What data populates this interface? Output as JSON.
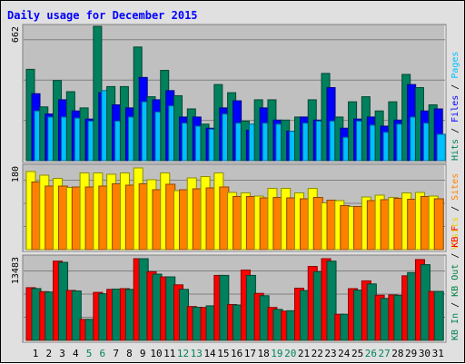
{
  "chart_data": {
    "type": "bar",
    "title": "Daily usage for December 2015",
    "categories": [
      "1",
      "2",
      "3",
      "4",
      "5",
      "6",
      "7",
      "8",
      "9",
      "10",
      "11",
      "12",
      "13",
      "14",
      "15",
      "16",
      "17",
      "18",
      "19",
      "20",
      "21",
      "22",
      "23",
      "24",
      "25",
      "26",
      "27",
      "28",
      "29",
      "30",
      "31"
    ],
    "weekend_days": [
      "5",
      "6",
      "12",
      "13",
      "19",
      "20",
      "26",
      "27"
    ],
    "panels": [
      {
        "id": "hits",
        "max_label": "662",
        "ymax": 662,
        "legend": [
          {
            "text": "Hits",
            "color": "#00805c"
          },
          {
            "text": " / ",
            "color": "#000000"
          },
          {
            "text": "Files",
            "color": "#0000ff"
          },
          {
            "text": " / ",
            "color": "#000000"
          },
          {
            "text": "Pages",
            "color": "#00c0ff"
          }
        ],
        "series": [
          {
            "name": "Hits",
            "color": "#00805c",
            "values": [
              450,
              265,
              395,
              340,
              260,
              662,
              365,
              365,
              560,
              315,
              445,
              320,
              255,
              180,
              375,
              335,
              195,
              300,
              300,
              200,
              215,
              300,
              430,
              215,
              290,
              315,
              245,
              290,
              425,
              360,
              275
            ]
          },
          {
            "name": "Files",
            "color": "#0000ff",
            "values": [
              330,
              230,
              300,
              245,
              205,
              335,
              275,
              260,
              410,
              300,
              345,
              215,
              215,
              160,
              260,
              295,
              150,
              260,
              200,
              145,
              215,
              200,
              360,
              160,
              205,
              215,
              170,
              200,
              375,
              245,
              255
            ]
          },
          {
            "name": "Pages",
            "color": "#00c0ff",
            "values": [
              245,
              215,
              215,
              210,
              195,
              345,
              195,
              215,
              290,
              240,
              270,
              185,
              170,
              155,
              230,
              185,
              180,
              185,
              180,
              145,
              185,
              195,
              195,
              115,
              195,
              175,
              140,
              180,
              215,
              185,
              130
            ]
          }
        ]
      },
      {
        "id": "visits",
        "max_label": "180",
        "ymax": 180,
        "legend": [
          {
            "text": "Visits",
            "color": "#e8d000"
          },
          {
            "text": " / ",
            "color": "#000000"
          },
          {
            "text": "Sites",
            "color": "#ff8000"
          }
        ],
        "series": [
          {
            "name": "Visits",
            "color": "#ffff00",
            "values": [
              172,
              164,
              157,
              137,
              169,
              169,
              166,
              169,
              180,
              154,
              169,
              130,
              158,
              161,
              169,
              126,
              125,
              118,
              135,
              135,
              125,
              135,
              103,
              108,
              95,
              116,
              120,
              115,
              125,
              126,
              118
            ]
          },
          {
            "name": "Sites",
            "color": "#ff8000",
            "values": [
              149,
              140,
              140,
              138,
              138,
              140,
              145,
              142,
              145,
              132,
              144,
              132,
              134,
              136,
              138,
              117,
              117,
              114,
              115,
              114,
              112,
              115,
              109,
              97,
              95,
              108,
              110,
              113,
              111,
              117,
              112
            ]
          }
        ]
      },
      {
        "id": "kbytes",
        "max_label": "13483",
        "ymax": 13483,
        "legend": [
          {
            "text": "KB In",
            "color": "#00805c"
          },
          {
            "text": " / ",
            "color": "#000000"
          },
          {
            "text": "KB Out",
            "color": "#008040"
          },
          {
            "text": " / ",
            "color": "#000000"
          },
          {
            "text": "KB F",
            "color": "#ff0000"
          }
        ],
        "series": [
          {
            "name": "KB F",
            "color": "#ff0000",
            "values": [
              8700,
              8045,
              13080,
              8245,
              3470,
              7925,
              8420,
              8540,
              13483,
              11330,
              10480,
              9170,
              5590,
              5435,
              10725,
              5920,
              11610,
              7760,
              5435,
              4835,
              8620,
              12200,
              13483,
              4315,
              8540,
              9825,
              7450,
              7500,
              10660,
              13340,
              8080
            ]
          },
          {
            "name": "KB In",
            "color": "#00805c",
            "values": [
              8550,
              7985,
              12880,
              8160,
              3470,
              7700,
              8470,
              8420,
              13483,
              10935,
              10480,
              8420,
              5465,
              5705,
              10725,
              5840,
              10725,
              7370,
              5115,
              4895,
              8225,
              11330,
              13080,
              4315,
              8290,
              9320,
              6925,
              7430,
              11180,
              12500,
              8080
            ]
          }
        ]
      }
    ]
  }
}
